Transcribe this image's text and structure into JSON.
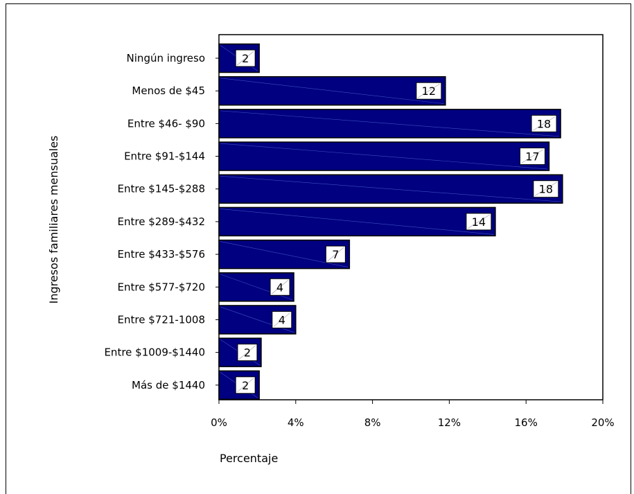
{
  "chart_data": {
    "type": "bar",
    "orientation": "horizontal",
    "categories": [
      "Ningún ingreso",
      "Menos de $45",
      "Entre $46- $90",
      "Entre $91-$144",
      "Entre $145-$288",
      "Entre $289-$432",
      "Entre $433-$576",
      "Entre $577-$720",
      "Entre $721-1008",
      "Entre $1009-$1440",
      "Más de $1440"
    ],
    "values": [
      2.1,
      11.8,
      17.8,
      17.2,
      17.9,
      14.4,
      6.8,
      3.9,
      4.0,
      2.2,
      2.1
    ],
    "data_labels": [
      "2",
      "12",
      "18",
      "17",
      "18",
      "14",
      "7",
      "4",
      "4",
      "2",
      "2"
    ],
    "xlabel": "Percentaje",
    "ylabel": "Ingresos familiares mensuales",
    "xlim": [
      0,
      20
    ],
    "xticks": [
      0,
      4,
      8,
      12,
      16,
      20
    ],
    "xtick_labels": [
      "0%",
      "4%",
      "8%",
      "12%",
      "16%",
      "20%"
    ],
    "bar_color": "#000080",
    "grid": false,
    "legend": "none"
  }
}
